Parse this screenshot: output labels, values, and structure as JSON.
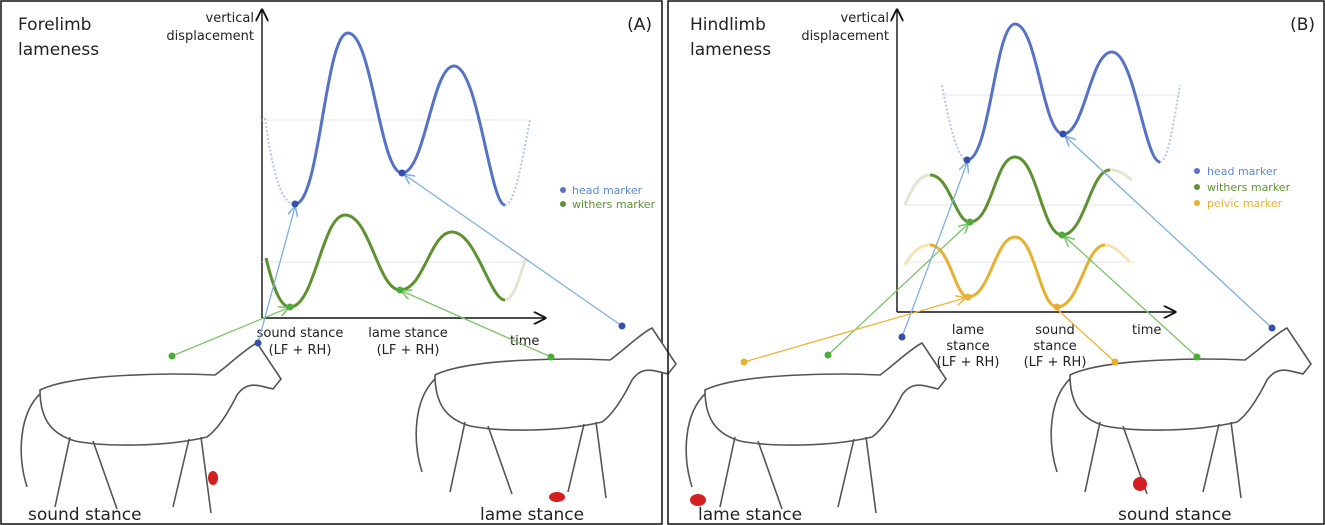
{
  "panels": [
    {
      "title": [
        "Forelimb",
        "lameness"
      ],
      "label": "(A)",
      "y_axis_label": [
        "vertical",
        "displacement"
      ],
      "x_axis_label": "time",
      "legend": [
        "head marker",
        "withers marker"
      ],
      "stance_labels": [
        [
          "sound stance",
          "(LF + RH)"
        ],
        [
          "lame stance",
          "(LF + RH)"
        ]
      ],
      "horse_labels": [
        "sound stance",
        "lame stance"
      ]
    },
    {
      "title": [
        "Hindlimb",
        "lameness"
      ],
      "label": "(B)",
      "y_axis_label": [
        "vertical",
        "displacement"
      ],
      "x_axis_label": "time",
      "legend": [
        "head marker",
        "withers marker",
        "pelvic marker"
      ],
      "stance_labels": [
        [
          "lame",
          "stance",
          "(LF + RH)"
        ],
        [
          "sound",
          "stance",
          "(LF + RH)"
        ]
      ],
      "horse_labels": [
        "lame stance",
        "sound stance"
      ]
    }
  ]
}
